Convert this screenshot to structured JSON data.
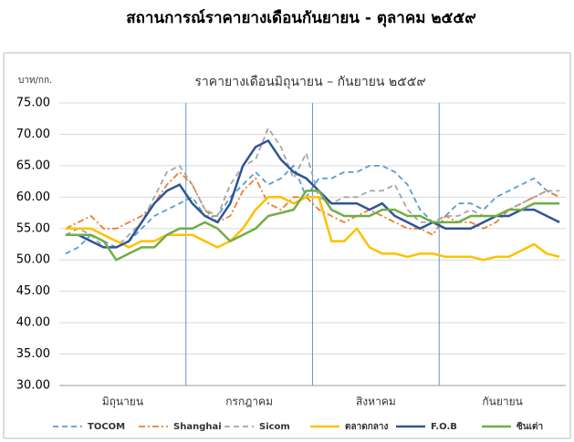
{
  "chart_data": {
    "type": "line",
    "page_title": "สถานการณ์ราคายางเดือนกันยายน - ตุลาคม ๒๕๕๙",
    "title": "ราคายางเดือนมิถุนายน – กันยายน ๒๕๕๙",
    "y_label": "บาท/กก.",
    "categories": [
      null,
      null,
      null,
      null,
      "มิถุนายน",
      null,
      null,
      null,
      null,
      null,
      null,
      null,
      null,
      null,
      "กรกฎาคม",
      null,
      null,
      null,
      null,
      null,
      null,
      null,
      null,
      null,
      "สิงหาคม",
      null,
      null,
      null,
      null,
      null,
      null,
      null,
      null,
      null,
      "กันยายน",
      null,
      null,
      null,
      null,
      null
    ],
    "ylim": [
      30,
      75
    ],
    "yticks": [
      {
        "value": 30,
        "label": "30.00"
      },
      {
        "value": 35,
        "label": "35.00"
      },
      {
        "value": 40,
        "label": "40.00"
      },
      {
        "value": 45,
        "label": "45.00"
      },
      {
        "value": 50,
        "label": "50.00"
      },
      {
        "value": 55,
        "label": "55.00"
      },
      {
        "value": 60,
        "label": "60.00"
      },
      {
        "value": 65,
        "label": "65.00"
      },
      {
        "value": 70,
        "label": "70.00"
      },
      {
        "value": 75,
        "label": "75.00"
      }
    ],
    "grid": true,
    "legend": "bottom",
    "series": [
      {
        "name": "TOCOM",
        "color": "#5b9bd5",
        "dash": "dashed",
        "values": [
          51,
          52,
          54,
          53,
          52,
          53,
          55,
          57,
          58,
          59,
          60,
          57,
          57,
          60,
          62,
          64,
          62,
          63,
          65,
          60,
          63,
          63,
          64,
          64,
          65,
          65,
          64,
          62,
          58,
          56,
          57,
          59,
          59,
          58,
          60,
          61,
          62,
          63,
          61,
          60
        ]
      },
      {
        "name": "Shanghai",
        "color": "#ed7d31",
        "dash": "dashdot",
        "values": [
          55,
          56,
          57,
          55,
          55,
          56,
          57,
          59,
          62,
          64,
          62,
          58,
          56,
          57,
          61,
          63,
          59,
          58,
          60,
          60,
          58,
          57,
          56,
          57,
          58,
          57,
          56,
          55,
          55,
          54,
          57,
          56,
          56,
          55,
          56,
          58,
          59,
          60,
          61,
          60
        ]
      },
      {
        "name": "Sicom",
        "color": "#a5a5a5",
        "dash": "dashed",
        "values": [
          54,
          55,
          54,
          52,
          52,
          54,
          56,
          60,
          64,
          65,
          62,
          58,
          57,
          62,
          65,
          66,
          71,
          68,
          63,
          67,
          60,
          59,
          60,
          60,
          61,
          61,
          62,
          58,
          56,
          56,
          57,
          57,
          58,
          57,
          57,
          58,
          59,
          60,
          61,
          61
        ]
      },
      {
        "name": "ตลาดกลาง",
        "color": "#ffc000",
        "dash": "solid",
        "values": [
          55,
          55,
          55,
          54,
          53,
          52,
          53,
          53,
          54,
          54,
          54,
          53,
          52,
          53,
          55,
          58,
          60,
          60,
          59,
          60,
          60,
          53,
          53,
          55,
          52,
          51,
          51,
          50.5,
          51,
          51,
          50.5,
          50.5,
          50.5,
          50,
          50.5,
          50.5,
          51.5,
          52.5,
          51,
          50.5
        ]
      },
      {
        "name": "F.O.B",
        "color": "#2f5597",
        "dash": "solid",
        "values": [
          54,
          54,
          53,
          52,
          52,
          53,
          56,
          59,
          61,
          62,
          59,
          57,
          56,
          59,
          65,
          68,
          69,
          66,
          64,
          63,
          61,
          59,
          59,
          59,
          58,
          59,
          57,
          56,
          55,
          56,
          55,
          55,
          55,
          56,
          57,
          57,
          58,
          58,
          57,
          56
        ]
      },
      {
        "name": "ซินเต่า",
        "color": "#70ad47",
        "dash": "solid",
        "values": [
          54,
          54,
          54,
          53,
          50,
          51,
          52,
          52,
          54,
          55,
          55,
          56,
          55,
          53,
          54,
          55,
          57,
          57.5,
          58,
          61,
          61,
          58,
          57,
          57,
          57,
          58,
          58,
          57,
          57,
          56,
          56,
          56,
          57,
          57,
          57,
          58,
          58,
          59,
          59,
          59
        ]
      }
    ]
  }
}
